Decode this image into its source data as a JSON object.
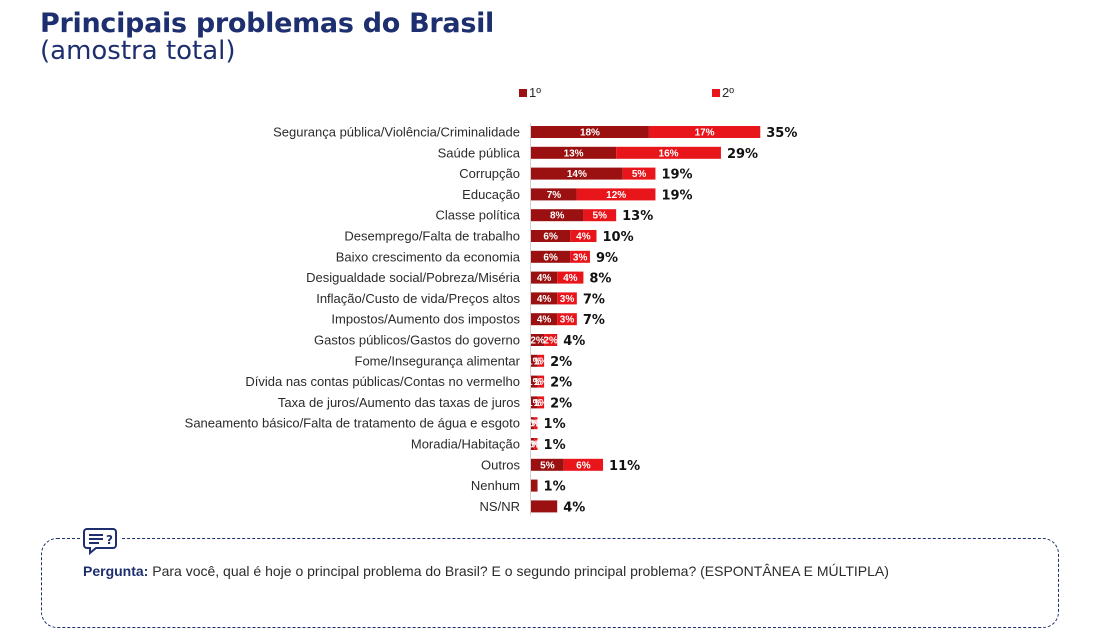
{
  "header": {
    "title": "Principais problemas do Brasil",
    "subtitle": "(amostra total)"
  },
  "colors": {
    "first": "#9b1010",
    "second": "#e8151b",
    "title": "#1d2f6f"
  },
  "chart_data": {
    "type": "bar",
    "orientation": "horizontal",
    "stacked": true,
    "title": "Principais problemas do Brasil",
    "subtitle": "(amostra total)",
    "legend_position": "top",
    "categories": [
      "Segurança pública/Violência/Criminalidade",
      "Saúde pública",
      "Corrupção",
      "Educação",
      "Classe política",
      "Desemprego/Falta de trabalho",
      "Baixo crescimento da economia",
      "Desigualdade social/Pobreza/Miséria",
      "Inflação/Custo de vida/Preços altos",
      "Impostos/Aumento dos impostos",
      "Gastos públicos/Gastos do governo",
      "Fome/Insegurança alimentar",
      "Dívida nas contas públicas/Contas no vermelho",
      "Taxa de juros/Aumento das taxas de juros",
      "Saneamento básico/Falta de tratamento de água e esgoto",
      "Moradia/Habitação",
      "Outros",
      "Nenhum",
      "NS/NR"
    ],
    "series": [
      {
        "name": "1º",
        "values": [
          18,
          13,
          14,
          7,
          8,
          6,
          6,
          4,
          4,
          4,
          2,
          1,
          1,
          1,
          0.5,
          0.5,
          5,
          1,
          4
        ],
        "labels": [
          "18%",
          "13%",
          "14%",
          "7%",
          "8%",
          "6%",
          "6%",
          "4%",
          "4%",
          "4%",
          "2%",
          "1%",
          "1%",
          "1%",
          "0%",
          "0%",
          "5%",
          "",
          ""
        ]
      },
      {
        "name": "2º",
        "values": [
          17,
          16,
          5,
          12,
          5,
          4,
          3,
          4,
          3,
          3,
          2,
          1,
          1,
          1,
          0.5,
          0.5,
          6,
          0,
          0
        ],
        "labels": [
          "17%",
          "16%",
          "5%",
          "12%",
          "5%",
          "4%",
          "3%",
          "4%",
          "3%",
          "3%",
          "2%",
          "1%",
          "1%",
          "1%",
          "0%",
          "0%",
          "6%",
          "",
          ""
        ]
      }
    ],
    "totals": [
      "35%",
      "29%",
      "19%",
      "19%",
      "13%",
      "10%",
      "9%",
      "8%",
      "7%",
      "7%",
      "4%",
      "2%",
      "2%",
      "2%",
      "1%",
      "1%",
      "11%",
      "1%",
      "4%"
    ]
  },
  "question": {
    "label": "Pergunta:",
    "text": " Para você, qual é hoje o principal problema do Brasil? E o segundo principal problema? (ESPONTÂNEA E MÚLTIPLA)",
    "icon": "question-chat-icon"
  }
}
